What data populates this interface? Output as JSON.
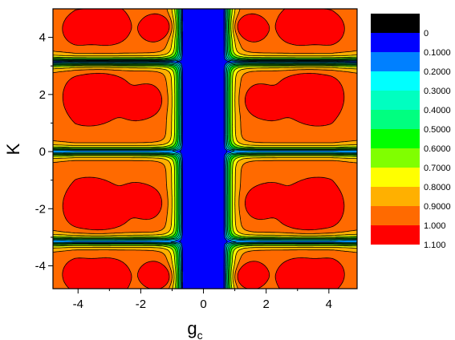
{
  "chart_data": {
    "type": "heatmap",
    "subtype": "filled-contour",
    "title": "",
    "xlabel": "g",
    "xlabel_subscript": "c",
    "ylabel": "K",
    "xlim": [
      -4.8,
      4.9
    ],
    "ylim": [
      -4.8,
      5.0
    ],
    "x_ticks": [
      -4,
      -2,
      0,
      2,
      4
    ],
    "x_tick_labels": [
      "-4",
      "-2",
      "0",
      "2",
      "4"
    ],
    "y_ticks": [
      -4,
      -2,
      0,
      2,
      4
    ],
    "y_tick_labels": [
      "-4",
      "-2",
      "0",
      "2",
      "4"
    ],
    "legend_position": "right",
    "contour_levels": [
      0,
      0.1,
      0.2,
      0.3,
      0.4,
      0.5,
      0.6,
      0.7,
      0.8,
      0.9,
      1.0,
      1.1
    ],
    "level_labels": [
      "0",
      "0.1000",
      "0.2000",
      "0.3000",
      "0.4000",
      "0.5000",
      "0.6000",
      "0.7000",
      "0.8000",
      "0.9000",
      "1.000",
      "1.100"
    ],
    "color_scale": [
      {
        "from": null,
        "to": 0,
        "color": "#000000"
      },
      {
        "from": 0,
        "to": 0.1,
        "color": "#0000ff"
      },
      {
        "from": 0.1,
        "to": 0.2,
        "color": "#0080ff"
      },
      {
        "from": 0.2,
        "to": 0.3,
        "color": "#00ffff"
      },
      {
        "from": 0.3,
        "to": 0.4,
        "color": "#00ffc0"
      },
      {
        "from": 0.4,
        "to": 0.5,
        "color": "#00ff80"
      },
      {
        "from": 0.5,
        "to": 0.6,
        "color": "#00ff00"
      },
      {
        "from": 0.6,
        "to": 0.7,
        "color": "#80ff00"
      },
      {
        "from": 0.7,
        "to": 0.8,
        "color": "#ffff00"
      },
      {
        "from": 0.8,
        "to": 0.9,
        "color": "#ffb000"
      },
      {
        "from": 0.9,
        "to": 1.0,
        "color": "#ff6a00"
      },
      {
        "from": 1.0,
        "to": 1.1,
        "color": "#ff0000"
      }
    ],
    "features": {
      "low_value_vertical_band_gc": [
        -0.65,
        0.65
      ],
      "low_value_horizontal_lines_K": [
        -3.14,
        0.0,
        3.14
      ],
      "dominant_value_range": [
        0.9,
        1.0
      ],
      "peak_value_range": [
        1.0,
        1.1
      ]
    }
  }
}
